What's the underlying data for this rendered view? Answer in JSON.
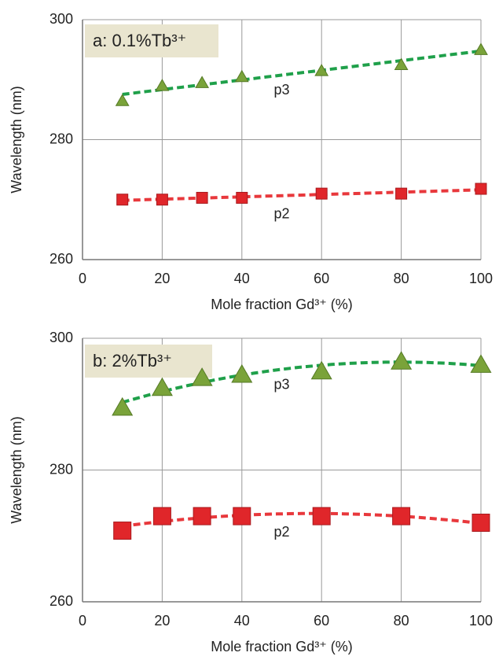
{
  "chart_data": [
    {
      "type": "scatter",
      "title": "a: 0.1%Tb³⁺",
      "x_label": "Mole fraction Gd³⁺ (%)",
      "y_label": "Wavelength (nm)",
      "x": [
        10,
        20,
        30,
        40,
        60,
        80,
        100
      ],
      "series": [
        {
          "name": "p3",
          "color": "#7aa33a",
          "marker": "triangle",
          "trend_color": "#1fa04a",
          "values": [
            286.5,
            289,
            289.5,
            290.5,
            291.5,
            292.5,
            295
          ]
        },
        {
          "name": "p2",
          "color": "#e0262a",
          "marker": "square",
          "trend_color": "#e8383c",
          "values": [
            270,
            270,
            270.3,
            270.3,
            271,
            271,
            271.8
          ]
        }
      ],
      "trendline": "linear",
      "xlim": [
        0,
        100
      ],
      "xticks": [
        0,
        20,
        40,
        60,
        80,
        100
      ],
      "ylim": [
        260,
        300
      ],
      "yticks": [
        260,
        280,
        300
      ],
      "grid": true
    },
    {
      "type": "scatter",
      "title": "b: 2%Tb³⁺",
      "x_label": "Mole fraction Gd³⁺ (%)",
      "y_label": "Wavelength (nm)",
      "x": [
        10,
        20,
        30,
        40,
        60,
        80,
        100
      ],
      "series": [
        {
          "name": "p3",
          "color": "#7aa33a",
          "marker": "triangle",
          "trend_color": "#1fa04a",
          "values": [
            289.5,
            292.5,
            294,
            294.5,
            295,
            296.5,
            296
          ]
        },
        {
          "name": "p2",
          "color": "#e0262a",
          "marker": "square",
          "trend_color": "#e8383c",
          "values": [
            270.8,
            273,
            273,
            273,
            273,
            273,
            272
          ]
        }
      ],
      "trendline": "poly2",
      "xlim": [
        0,
        100
      ],
      "xticks": [
        0,
        20,
        40,
        60,
        80,
        100
      ],
      "ylim": [
        260,
        300
      ],
      "yticks": [
        260,
        280,
        300
      ],
      "grid": true
    }
  ]
}
